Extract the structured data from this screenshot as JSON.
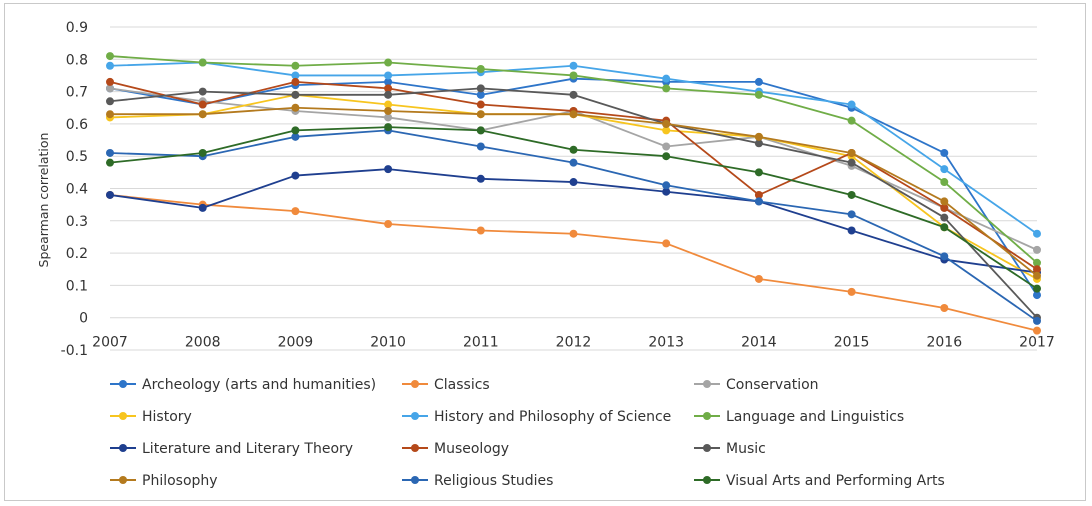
{
  "chart_data": {
    "type": "line",
    "title": "",
    "xlabel": "",
    "ylabel": "Spearman correlation",
    "ylim": [
      -0.1,
      0.9
    ],
    "yticks": [
      "-0.1",
      "0",
      "0.1",
      "0.2",
      "0.3",
      "0.4",
      "0.5",
      "0.6",
      "0.7",
      "0.8",
      "0.9"
    ],
    "yticks_values": [
      -0.1,
      0,
      0.1,
      0.2,
      0.3,
      0.4,
      0.5,
      0.6,
      0.7,
      0.8,
      0.9
    ],
    "grid": "horizontal",
    "legend_position": "bottom",
    "x": [
      "2007",
      "2008",
      "2009",
      "2010",
      "2011",
      "2012",
      "2013",
      "2014",
      "2015",
      "2016",
      "2017"
    ],
    "series": [
      {
        "name": "Archeology (arts and humanities)",
        "color": "#2e75c9",
        "values": [
          0.71,
          0.66,
          0.72,
          0.73,
          0.69,
          0.74,
          0.73,
          0.73,
          0.65,
          0.51,
          0.07
        ]
      },
      {
        "name": "Classics",
        "color": "#f08a3c",
        "values": [
          0.38,
          0.35,
          0.33,
          0.29,
          0.27,
          0.26,
          0.23,
          0.12,
          0.08,
          0.03,
          -0.04
        ]
      },
      {
        "name": "Conservation",
        "color": "#a5a5a5",
        "values": [
          0.71,
          0.67,
          0.64,
          0.62,
          0.58,
          0.64,
          0.53,
          0.56,
          0.47,
          0.34,
          0.21
        ]
      },
      {
        "name": "History",
        "color": "#f7c51f",
        "values": [
          0.62,
          0.63,
          0.69,
          0.66,
          0.63,
          0.63,
          0.58,
          0.56,
          0.5,
          0.28,
          0.12
        ]
      },
      {
        "name": "History and Philosophy of Science",
        "color": "#46a5e8",
        "values": [
          0.78,
          0.79,
          0.75,
          0.75,
          0.76,
          0.78,
          0.74,
          0.7,
          0.66,
          0.46,
          0.26
        ]
      },
      {
        "name": "Language and Linguistics",
        "color": "#70ad47",
        "values": [
          0.81,
          0.79,
          0.78,
          0.79,
          0.77,
          0.75,
          0.71,
          0.69,
          0.61,
          0.42,
          0.17
        ]
      },
      {
        "name": "Literature and Literary Theory",
        "color": "#1f3f8f",
        "values": [
          0.38,
          0.34,
          0.44,
          0.46,
          0.43,
          0.42,
          0.39,
          0.36,
          0.27,
          0.18,
          0.14
        ]
      },
      {
        "name": "Museology",
        "color": "#b5491a",
        "values": [
          0.73,
          0.66,
          0.73,
          0.71,
          0.66,
          0.64,
          0.61,
          0.38,
          0.51,
          0.34,
          0.15
        ]
      },
      {
        "name": "Music",
        "color": "#595959",
        "values": [
          0.67,
          0.7,
          0.69,
          0.69,
          0.71,
          0.69,
          0.6,
          0.54,
          0.48,
          0.31,
          0.0
        ]
      },
      {
        "name": "Philosophy",
        "color": "#b47a1e",
        "values": [
          0.63,
          0.63,
          0.65,
          0.64,
          0.63,
          0.63,
          0.6,
          0.56,
          0.51,
          0.36,
          0.13
        ]
      },
      {
        "name": "Religious Studies",
        "color": "#2b67b3",
        "values": [
          0.51,
          0.5,
          0.56,
          0.58,
          0.53,
          0.48,
          0.41,
          0.36,
          0.32,
          0.19,
          -0.01
        ]
      },
      {
        "name": "Visual Arts and Performing Arts",
        "color": "#2e6b27",
        "values": [
          0.48,
          0.51,
          0.58,
          0.59,
          0.58,
          0.52,
          0.5,
          0.45,
          0.38,
          0.28,
          0.09
        ]
      }
    ]
  }
}
